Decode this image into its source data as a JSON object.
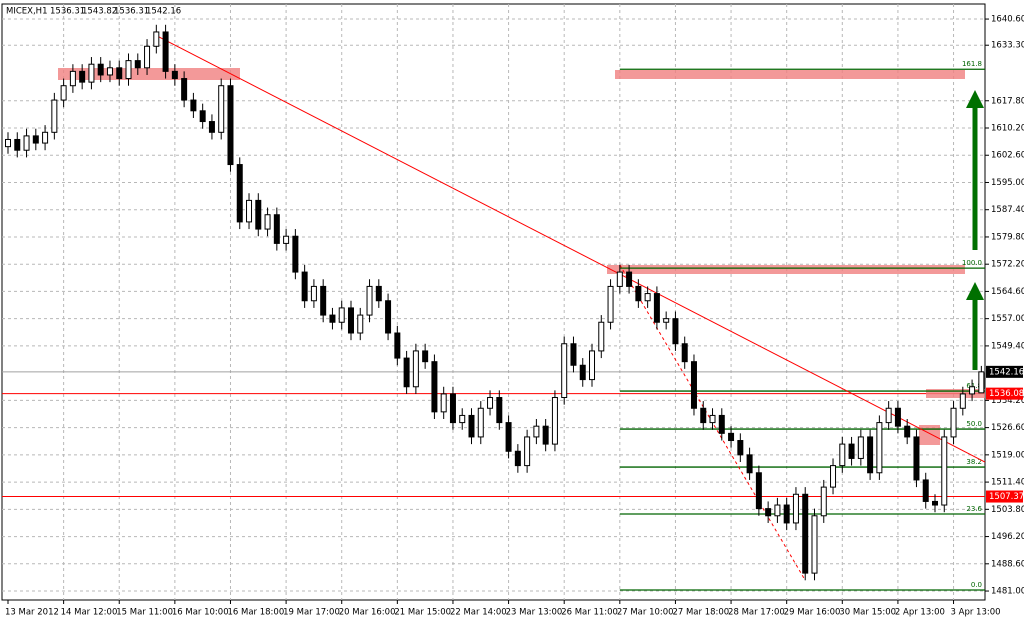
{
  "chart_data": {
    "type": "candlestick",
    "title": "MICEX,H1",
    "open": [
      1605,
      1607,
      1604,
      1608,
      1606,
      1609,
      1618,
      1622,
      1626,
      1623,
      1628,
      1625,
      1627,
      1624,
      1629,
      1627,
      1633,
      1637,
      1626,
      1624,
      1618,
      1615,
      1612,
      1609,
      1622,
      1600,
      1584,
      1590,
      1582,
      1586,
      1578,
      1580,
      1570,
      1562,
      1566,
      1558,
      1556,
      1560,
      1553,
      1558,
      1566,
      1562,
      1553,
      1546,
      1538,
      1548,
      1545,
      1531,
      1536,
      1528,
      1530,
      1524,
      1532,
      1535,
      1528,
      1520,
      1516,
      1524,
      1527,
      1522,
      1535,
      1550,
      1544,
      1540,
      1548,
      1556,
      1566,
      1570,
      1566,
      1562,
      1564,
      1556,
      1557,
      1550,
      1545,
      1532,
      1528,
      1530,
      1525,
      1523,
      1519,
      1514,
      1504,
      1502,
      1505,
      1500,
      1508,
      1486,
      1502,
      1510,
      1516,
      1522,
      1518,
      1524,
      1514,
      1528,
      1532,
      1527,
      1524,
      1512,
      1506,
      1505,
      1524,
      1532,
      1536,
      1536.31
    ],
    "high": [
      1609,
      1609,
      1610,
      1610,
      1611,
      1620,
      1624,
      1628,
      1628,
      1630,
      1630,
      1629,
      1629,
      1631,
      1631,
      1635,
      1639,
      1639,
      1628,
      1626,
      1620,
      1617,
      1614,
      1624,
      1624,
      1602,
      1592,
      1592,
      1588,
      1588,
      1582,
      1582,
      1572,
      1568,
      1568,
      1560,
      1562,
      1562,
      1560,
      1568,
      1568,
      1564,
      1555,
      1548,
      1550,
      1550,
      1547,
      1538,
      1538,
      1532,
      1532,
      1534,
      1537,
      1537,
      1530,
      1522,
      1526,
      1529,
      1529,
      1537,
      1552,
      1552,
      1546,
      1550,
      1558,
      1568,
      1572,
      1572,
      1568,
      1566,
      1566,
      1559,
      1559,
      1552,
      1547,
      1534,
      1532,
      1532,
      1527,
      1525,
      1521,
      1516,
      1506,
      1507,
      1507,
      1510,
      1510,
      1504,
      1512,
      1518,
      1524,
      1524,
      1526,
      1526,
      1530,
      1534,
      1534,
      1529,
      1526,
      1514,
      1508,
      1526,
      1534,
      1538,
      1540,
      1543.82
    ],
    "low": [
      1603,
      1602,
      1602,
      1604,
      1604,
      1607,
      1616,
      1620,
      1621,
      1621,
      1623,
      1623,
      1622,
      1622,
      1625,
      1625,
      1631,
      1624,
      1622,
      1616,
      1613,
      1610,
      1607,
      1607,
      1598,
      1582,
      1582,
      1580,
      1580,
      1576,
      1576,
      1568,
      1560,
      1560,
      1556,
      1554,
      1554,
      1551,
      1551,
      1556,
      1560,
      1551,
      1544,
      1536,
      1536,
      1543,
      1529,
      1529,
      1526,
      1526,
      1522,
      1522,
      1530,
      1526,
      1518,
      1514,
      1514,
      1522,
      1520,
      1520,
      1533,
      1542,
      1538,
      1538,
      1546,
      1554,
      1564,
      1564,
      1560,
      1560,
      1554,
      1554,
      1548,
      1543,
      1530,
      1526,
      1526,
      1523,
      1521,
      1517,
      1512,
      1502,
      1500,
      1500,
      1498,
      1498,
      1484,
      1484,
      1500,
      1508,
      1514,
      1516,
      1516,
      1512,
      1512,
      1526,
      1525,
      1522,
      1510,
      1504,
      1503,
      1503,
      1522,
      1530,
      1534,
      1536.31
    ],
    "close": [
      1607,
      1604,
      1608,
      1606,
      1609,
      1618,
      1622,
      1626,
      1623,
      1628,
      1625,
      1627,
      1624,
      1629,
      1627,
      1633,
      1637,
      1626,
      1624,
      1618,
      1615,
      1612,
      1609,
      1622,
      1600,
      1584,
      1590,
      1582,
      1586,
      1578,
      1580,
      1570,
      1562,
      1566,
      1558,
      1556,
      1560,
      1553,
      1558,
      1566,
      1562,
      1553,
      1546,
      1538,
      1548,
      1545,
      1531,
      1536,
      1528,
      1530,
      1524,
      1532,
      1535,
      1528,
      1520,
      1516,
      1524,
      1527,
      1522,
      1535,
      1550,
      1544,
      1540,
      1548,
      1556,
      1566,
      1570,
      1566,
      1562,
      1564,
      1556,
      1557,
      1550,
      1545,
      1532,
      1528,
      1530,
      1525,
      1523,
      1519,
      1514,
      1504,
      1502,
      1505,
      1500,
      1508,
      1486,
      1502,
      1510,
      1516,
      1522,
      1518,
      1524,
      1514,
      1528,
      1532,
      1527,
      1524,
      1512,
      1506,
      1505,
      1524,
      1532,
      1536,
      1538,
      1542.16
    ],
    "xtick_labels": [
      "13 Mar 2012",
      "14 Mar 12:00",
      "15 Mar 11:00",
      "16 Mar 10:00",
      "16 Mar 18:00",
      "19 Mar 17:00",
      "20 Mar 16:00",
      "21 Mar 15:00",
      "22 Mar 14:00",
      "23 Mar 13:00",
      "26 Mar 11:00",
      "27 Mar 10:00",
      "27 Mar 18:00",
      "28 Mar 17:00",
      "29 Mar 16:00",
      "30 Mar 15:00",
      "2 Apr 13:00",
      "3 Apr 13:00"
    ],
    "ylim": [
      1478.5,
      1644.8
    ],
    "yticks": [
      {
        "value": 1640.6,
        "label": "1640.60"
      },
      {
        "value": 1633.3,
        "label": "1633.30"
      },
      {
        "value": 1617.8,
        "label": "1617.80"
      },
      {
        "value": 1610.2,
        "label": "1610.20"
      },
      {
        "value": 1602.6,
        "label": "1602.60"
      },
      {
        "value": 1595,
        "label": "1595.00"
      },
      {
        "value": 1587.4,
        "label": "1587.40"
      },
      {
        "value": 1579.8,
        "label": "1579.80"
      },
      {
        "value": 1572.2,
        "label": "1572.20"
      },
      {
        "value": 1564.6,
        "label": "1564.60"
      },
      {
        "value": 1557,
        "label": "1557.00"
      },
      {
        "value": 1549.4,
        "label": "1549.40"
      },
      {
        "value": 1534.2,
        "label": "1534.20"
      },
      {
        "value": 1526.6,
        "label": "1526.60"
      },
      {
        "value": 1519,
        "label": "1519.00"
      },
      {
        "value": 1511.4,
        "label": "1511.40"
      },
      {
        "value": 1503.8,
        "label": "1503.80"
      },
      {
        "value": 1496.2,
        "label": "1496.20"
      },
      {
        "value": 1488.6,
        "label": "1488.60"
      },
      {
        "value": 1481,
        "label": "1481.00"
      }
    ],
    "grid": true,
    "price_lines": [
      {
        "price": 1542.16,
        "color": "#000000"
      },
      {
        "price": 1536.08,
        "color": "#ff0000"
      },
      {
        "price": 1507.37,
        "color": "#ff0000"
      }
    ],
    "trendline": {
      "x": [
        16,
        106
      ],
      "y": [
        1636,
        1517
      ],
      "color": "#ff0000"
    },
    "fibonacci": {
      "color": "#006400",
      "start_index": 66,
      "levels": [
        {
          "label": "0.0",
          "price": 1481.3
        },
        {
          "label": "23.6",
          "price": 1502.5
        },
        {
          "label": "38.2",
          "price": 1515.6
        },
        {
          "label": "50.0",
          "price": 1526.2
        },
        {
          "label": "61.8",
          "price": 1536.8
        },
        {
          "label": "100.0",
          "price": 1571.1
        },
        {
          "label": "161.8",
          "price": 1626.6
        }
      ]
    }
  }
}
